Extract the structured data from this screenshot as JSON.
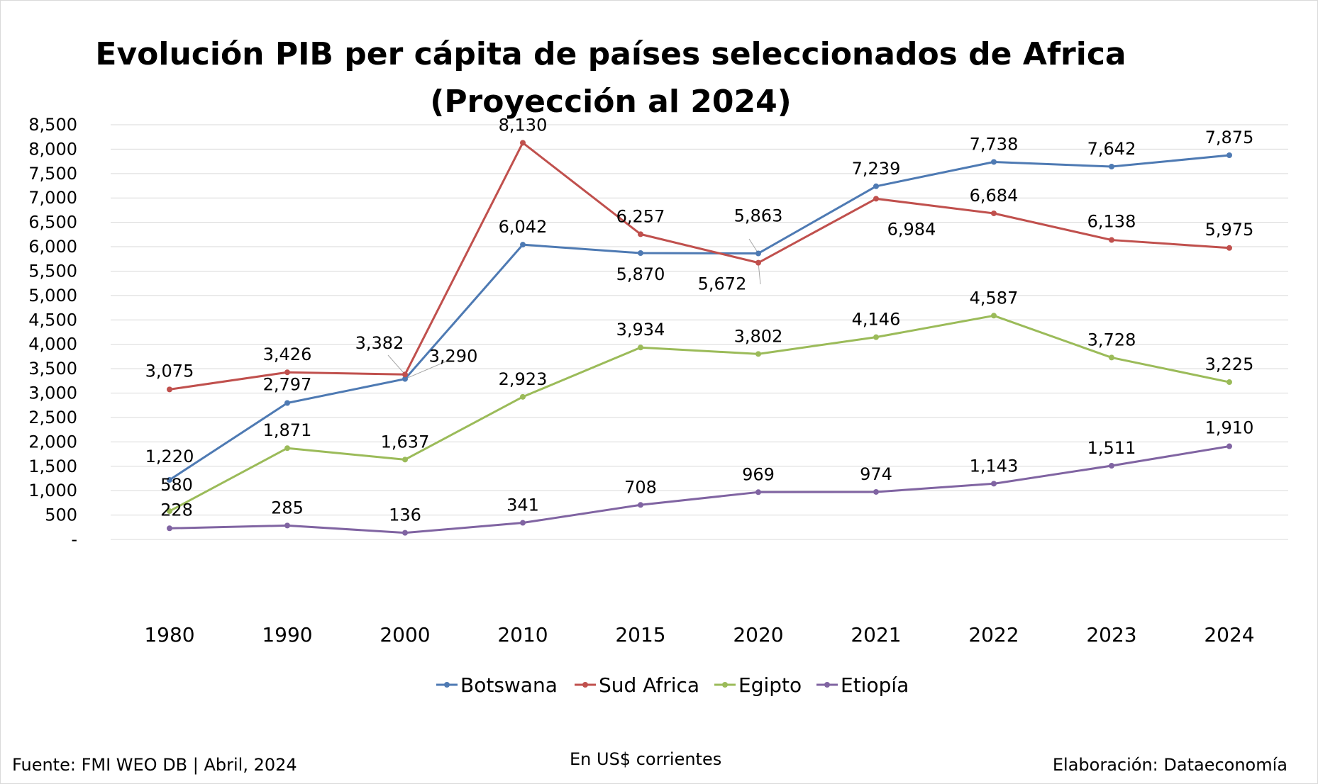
{
  "chart_data": {
    "type": "line",
    "title_line1": "Evolución PIB per cápita de países seleccionados de Africa",
    "title_line2": "(Proyección al 2024)",
    "categories": [
      "1980",
      "1990",
      "2000",
      "2010",
      "2015",
      "2020",
      "2021",
      "2022",
      "2023",
      "2024"
    ],
    "yticks": [
      "8,500",
      "8,000",
      "7,500",
      "7,000",
      "6,500",
      "6,000",
      "5,500",
      "5,000",
      "4,500",
      "4,000",
      "3,500",
      "3,000",
      "2,500",
      "2,000",
      "1,500",
      "1,000",
      "500",
      "-"
    ],
    "ylim": [
      0,
      8500
    ],
    "grid": true,
    "legend_position": "bottom",
    "series": [
      {
        "name": "Botswana",
        "color": "#4e7ab3",
        "values": [
          1220,
          2797,
          3290,
          6042,
          5870,
          5863,
          7239,
          7738,
          7642,
          7875
        ],
        "labels": [
          "1,220",
          "2,797",
          "3,290",
          "6,042",
          "5,870",
          "5,863",
          "7,239",
          "7,738",
          "7,642",
          "7,875"
        ]
      },
      {
        "name": "Sud Africa",
        "color": "#c0504d",
        "values": [
          3075,
          3426,
          3382,
          8130,
          6257,
          5672,
          6984,
          6684,
          6138,
          5975
        ],
        "labels": [
          "3,075",
          "3,426",
          "3,382",
          "8,130",
          "6,257",
          "5,672",
          "6,984",
          "6,684",
          "6,138",
          "5,975"
        ]
      },
      {
        "name": "Egipto",
        "color": "#9bbb59",
        "values": [
          580,
          1871,
          1637,
          2923,
          3934,
          3802,
          4146,
          4587,
          3728,
          3225
        ],
        "labels": [
          "580",
          "1,871",
          "1,637",
          "2,923",
          "3,934",
          "3,802",
          "4,146",
          "4,587",
          "3,728",
          "3,225"
        ]
      },
      {
        "name": "Etiopía",
        "color": "#8064a2",
        "values": [
          228,
          285,
          136,
          341,
          708,
          969,
          974,
          1143,
          1511,
          1910
        ],
        "labels": [
          "228",
          "285",
          "136",
          "341",
          "708",
          "969",
          "974",
          "1,143",
          "1,511",
          "1,910"
        ]
      }
    ]
  },
  "footer": {
    "source": "Fuente: FMI WEO DB | Abril, 2024",
    "units": "En US$ corrientes",
    "credit": "Elaboración: Dataeconomía"
  }
}
